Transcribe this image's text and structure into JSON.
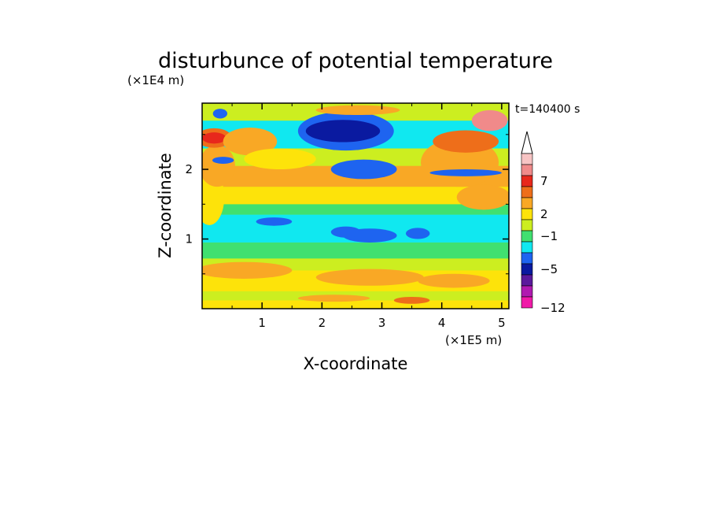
{
  "chart_data": {
    "type": "heatmap",
    "title": "disturbunce of potential temperature",
    "xlabel": "X-coordinate",
    "ylabel": "Z-coordinate",
    "x_unit": "(×1E5 m)",
    "y_unit": "(×1E4 m)",
    "time_label": "t=140400 s",
    "xlim": [
      0,
      5.12
    ],
    "ylim": [
      0,
      2.95
    ],
    "x_ticks": [
      "1",
      "2",
      "3",
      "4",
      "5"
    ],
    "y_ticks": [
      "1",
      "2"
    ],
    "colorbar": {
      "labels": [
        "7",
        "2",
        "−1",
        "−5",
        "−12"
      ],
      "bins": [
        {
          "value": "> 9",
          "color": "#f7c4c4"
        },
        {
          "value": "8 to 9",
          "color": "#f08a8a"
        },
        {
          "value": "6 to 8",
          "color": "#e8281c"
        },
        {
          "value": "4 to 6",
          "color": "#ee6e1a"
        },
        {
          "value": "2 to 4",
          "color": "#f9a825"
        },
        {
          "value": "1 to 2",
          "color": "#fde30a"
        },
        {
          "value": "0 to 1",
          "color": "#ccee20"
        },
        {
          "value": "-1 to 0",
          "color": "#40e070"
        },
        {
          "value": "-3 to -1",
          "color": "#10e8f0"
        },
        {
          "value": "-4 to -3",
          "color": "#1e64f0"
        },
        {
          "value": "-6 to -4",
          "color": "#0a1aa0"
        },
        {
          "value": "-8 to -6",
          "color": "#5a1a9c"
        },
        {
          "value": "-10 to -8",
          "color": "#b01ab0"
        },
        {
          "value": "< -10",
          "color": "#f01aa8"
        }
      ]
    },
    "bands": [
      {
        "z": [
          0.0,
          0.12
        ],
        "value": "1 to 2"
      },
      {
        "z": [
          0.12,
          0.25
        ],
        "value": "0 to 1"
      },
      {
        "z": [
          0.25,
          0.55
        ],
        "value": "1 to 2"
      },
      {
        "z": [
          0.55,
          0.72
        ],
        "value": "0 to 1"
      },
      {
        "z": [
          0.72,
          0.95
        ],
        "value": "-1 to 0"
      },
      {
        "z": [
          0.95,
          1.35
        ],
        "value": "-3 to -1"
      },
      {
        "z": [
          1.35,
          1.5
        ],
        "value": "-1 to 0"
      },
      {
        "z": [
          1.5,
          1.75
        ],
        "value": "1 to 2"
      },
      {
        "z": [
          1.75,
          2.05
        ],
        "value": "2 to 4"
      },
      {
        "z": [
          2.05,
          2.3
        ],
        "value": "0 to 1"
      },
      {
        "z": [
          2.3,
          2.7
        ],
        "value": "-3 to -1"
      },
      {
        "z": [
          2.7,
          2.95
        ],
        "value": "0 to 1"
      }
    ],
    "features": [
      {
        "x": 0.12,
        "z": 1.6,
        "rx": 0.25,
        "rz": 0.4,
        "value": "1 to 2"
      },
      {
        "x": 0.25,
        "z": 2.05,
        "rx": 0.3,
        "rz": 0.3,
        "value": "2 to 4"
      },
      {
        "x": 0.2,
        "z": 2.45,
        "rx": 0.3,
        "rz": 0.14,
        "value": "4 to 6"
      },
      {
        "x": 0.2,
        "z": 2.45,
        "rx": 0.2,
        "rz": 0.08,
        "value": "6 to 8"
      },
      {
        "x": 0.3,
        "z": 2.8,
        "rx": 0.12,
        "rz": 0.07,
        "value": "-4 to -3"
      },
      {
        "x": 0.35,
        "z": 2.13,
        "rx": 0.18,
        "rz": 0.05,
        "value": "-4 to -3"
      },
      {
        "x": 0.8,
        "z": 2.4,
        "rx": 0.45,
        "rz": 0.2,
        "value": "2 to 4"
      },
      {
        "x": 1.3,
        "z": 2.15,
        "rx": 0.6,
        "rz": 0.15,
        "value": "1 to 2"
      },
      {
        "x": 2.4,
        "z": 2.55,
        "rx": 0.8,
        "rz": 0.28,
        "value": "-4 to -3"
      },
      {
        "x": 2.35,
        "z": 2.55,
        "rx": 0.62,
        "rz": 0.16,
        "value": "-6 to -4"
      },
      {
        "x": 2.7,
        "z": 2.0,
        "rx": 0.55,
        "rz": 0.14,
        "value": "-4 to -3"
      },
      {
        "x": 2.6,
        "z": 2.85,
        "rx": 0.7,
        "rz": 0.07,
        "value": "2 to 4"
      },
      {
        "x": 4.3,
        "z": 2.1,
        "rx": 0.65,
        "rz": 0.35,
        "value": "2 to 4"
      },
      {
        "x": 4.4,
        "z": 2.4,
        "rx": 0.55,
        "rz": 0.16,
        "value": "4 to 6"
      },
      {
        "x": 4.8,
        "z": 2.7,
        "rx": 0.3,
        "rz": 0.15,
        "value": "8 to 9"
      },
      {
        "x": 4.4,
        "z": 1.95,
        "rx": 0.6,
        "rz": 0.05,
        "value": "-4 to -3"
      },
      {
        "x": 4.7,
        "z": 1.6,
        "rx": 0.45,
        "rz": 0.18,
        "value": "2 to 4"
      },
      {
        "x": 2.8,
        "z": 1.05,
        "rx": 0.45,
        "rz": 0.1,
        "value": "-4 to -3"
      },
      {
        "x": 2.4,
        "z": 1.1,
        "rx": 0.25,
        "rz": 0.08,
        "value": "-4 to -3"
      },
      {
        "x": 3.6,
        "z": 1.08,
        "rx": 0.2,
        "rz": 0.08,
        "value": "-4 to -3"
      },
      {
        "x": 1.2,
        "z": 1.25,
        "rx": 0.3,
        "rz": 0.06,
        "value": "-4 to -3"
      },
      {
        "x": 0.7,
        "z": 0.55,
        "rx": 0.8,
        "rz": 0.12,
        "value": "2 to 4"
      },
      {
        "x": 2.8,
        "z": 0.45,
        "rx": 0.9,
        "rz": 0.12,
        "value": "2 to 4"
      },
      {
        "x": 4.2,
        "z": 0.4,
        "rx": 0.6,
        "rz": 0.1,
        "value": "2 to 4"
      },
      {
        "x": 2.2,
        "z": 0.15,
        "rx": 0.6,
        "rz": 0.05,
        "value": "2 to 4"
      },
      {
        "x": 3.5,
        "z": 0.12,
        "rx": 0.3,
        "rz": 0.05,
        "value": "4 to 6"
      }
    ]
  }
}
